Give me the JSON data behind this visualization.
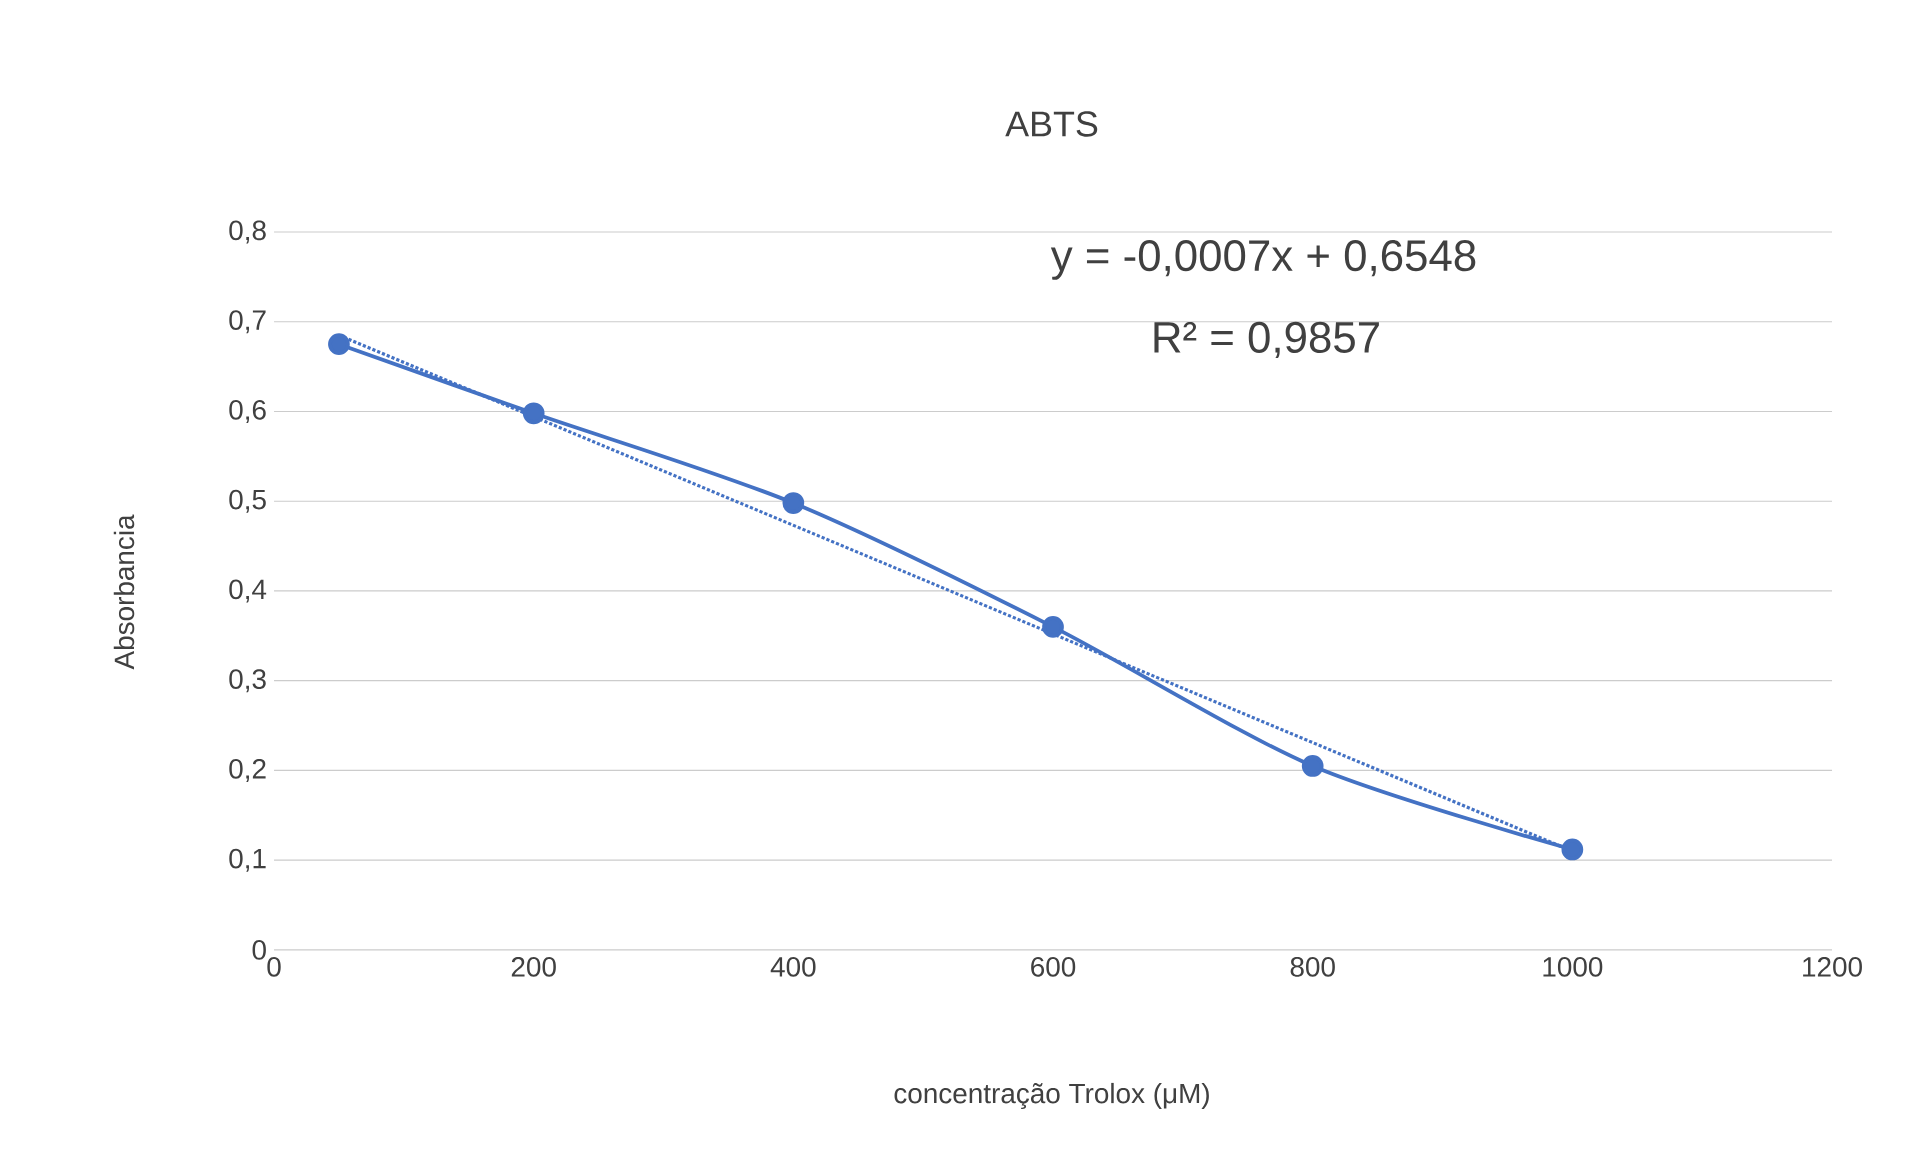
{
  "chart_data": {
    "type": "line",
    "title": "ABTS",
    "xlabel": "concentração Trolox (μM)",
    "ylabel": "Absorbancia",
    "xlim": [
      0,
      1200
    ],
    "xticks": [
      0,
      200,
      400,
      600,
      800,
      1000,
      1200
    ],
    "ylim": [
      0,
      0.8
    ],
    "yticks": [
      0,
      {
        "value": 0.1,
        "label": "0,1"
      },
      {
        "value": 0.2,
        "label": "0,2"
      },
      {
        "value": 0.3,
        "label": "0,3"
      },
      {
        "value": 0.4,
        "label": "0,4"
      },
      {
        "value": 0.5,
        "label": "0,5"
      },
      {
        "value": 0.6,
        "label": "0,6"
      },
      {
        "value": 0.7,
        "label": "0,7"
      },
      {
        "value": 0.8,
        "label": "0,8"
      }
    ],
    "grid": "y",
    "series": [
      {
        "color": "#4472c4",
        "x": [
          50,
          200,
          400,
          600,
          800,
          1000
        ],
        "values": [
          0.675,
          0.598,
          0.498,
          0.36,
          0.205,
          0.112
        ],
        "marker": "circle",
        "line_style": "solid"
      },
      {
        "type": "line",
        "color": "#4472c4",
        "x": [
          50,
          1000
        ],
        "values": [
          0.685,
          0.11
        ],
        "marker": "none",
        "line_style": "dotted"
      }
    ],
    "annotations": [
      "y = -0,0007x + 0,6548",
      "R² = 0,9857"
    ]
  }
}
